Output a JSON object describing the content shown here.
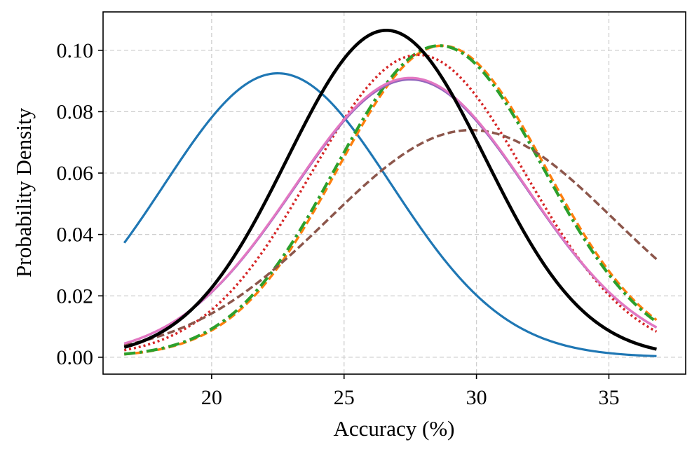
{
  "chart_data": {
    "type": "line",
    "title": "",
    "xlabel": "Accuracy (%)",
    "ylabel": "Probability Density",
    "xlim": [
      15.9,
      37.9
    ],
    "ylim": [
      -0.0055,
      0.1125
    ],
    "x_range": [
      16.7,
      36.8
    ],
    "xticks": [
      20,
      25,
      30,
      35
    ],
    "xtick_labels": [
      "20",
      "25",
      "30",
      "35"
    ],
    "yticks": [
      0.0,
      0.02,
      0.04,
      0.06,
      0.08,
      0.1
    ],
    "ytick_labels": [
      "0.00",
      "0.02",
      "0.04",
      "0.06",
      "0.08",
      "0.10"
    ],
    "grid": true,
    "legend": "none",
    "series": [
      {
        "name": "blue",
        "distribution": "normal",
        "mean": 22.5,
        "sd": 4.3,
        "peak": 0.0925,
        "color": "#1f77b4",
        "style": "solid"
      },
      {
        "name": "orange",
        "distribution": "normal",
        "mean": 28.7,
        "sd": 3.93,
        "peak": 0.1015,
        "color": "#ff7f0e",
        "style": "dashed"
      },
      {
        "name": "green",
        "distribution": "normal",
        "mean": 28.6,
        "sd": 3.93,
        "peak": 0.1015,
        "color": "#2ca02c",
        "style": "dashdot"
      },
      {
        "name": "red",
        "distribution": "normal",
        "mean": 27.8,
        "sd": 4.05,
        "peak": 0.0985,
        "color": "#d62728",
        "style": "dotted"
      },
      {
        "name": "purple",
        "distribution": "normal",
        "mean": 27.5,
        "sd": 4.4,
        "peak": 0.0905,
        "color": "#9467bd",
        "style": "solid"
      },
      {
        "name": "brown",
        "distribution": "normal",
        "mean": 29.8,
        "sd": 5.4,
        "peak": 0.074,
        "color": "#8c564b",
        "style": "dashed"
      },
      {
        "name": "pink",
        "distribution": "normal",
        "mean": 27.5,
        "sd": 4.4,
        "peak": 0.091,
        "color": "#e377c2",
        "style": "solid"
      },
      {
        "name": "black",
        "distribution": "normal",
        "mean": 26.6,
        "sd": 3.75,
        "peak": 0.1065,
        "color": "#000000",
        "style": "solid"
      }
    ]
  }
}
